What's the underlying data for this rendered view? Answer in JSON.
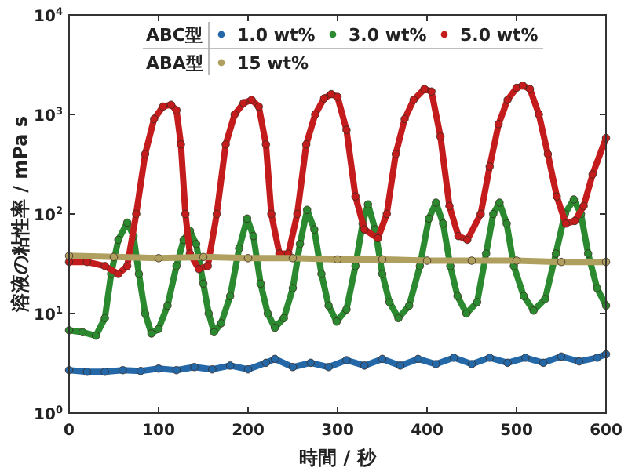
{
  "chart_data": {
    "type": "line",
    "xlabel": "時間 / 秒",
    "ylabel": "溶液の粘性率 / mPa s",
    "log": "y",
    "marker": "circle",
    "legend": "top",
    "annotations": [
      "ABC型",
      "ABA型"
    ],
    "xlim": [
      0,
      600
    ],
    "xticks": [
      0,
      100,
      200,
      300,
      400,
      500,
      600
    ],
    "ylim": [
      1,
      10000
    ],
    "yticks": [
      {
        "value": 1,
        "label": "10$^{0}$"
      },
      {
        "value": 10,
        "label": "10$^{1}$"
      },
      {
        "value": 100,
        "label": "10$^{2}$"
      },
      {
        "value": 1000,
        "label": "10$^{3}$"
      },
      {
        "value": 10000,
        "label": "10$^{4}$"
      }
    ],
    "series": [
      {
        "name": "1.0 wt%",
        "color": "#2468a8",
        "x": [
          0,
          20,
          40,
          60,
          80,
          100,
          120,
          140,
          160,
          180,
          200,
          220,
          230,
          250,
          270,
          290,
          310,
          330,
          350,
          370,
          390,
          410,
          430,
          450,
          470,
          490,
          510,
          530,
          550,
          570,
          590,
          600
        ],
        "values": [
          2.7,
          2.6,
          2.6,
          2.7,
          2.65,
          2.8,
          2.7,
          2.9,
          2.75,
          3.0,
          2.75,
          3.2,
          3.5,
          2.9,
          3.2,
          2.9,
          3.4,
          3.0,
          3.5,
          3.0,
          3.5,
          3.1,
          3.6,
          3.1,
          3.6,
          3.2,
          3.6,
          3.2,
          3.7,
          3.3,
          3.6,
          3.9
        ]
      },
      {
        "name": "3.0 wt%",
        "color": "#2b8a2f",
        "x": [
          0,
          15,
          30,
          40,
          47,
          55,
          65,
          72,
          78,
          85,
          92,
          100,
          110,
          120,
          128,
          135,
          142,
          150,
          156,
          162,
          170,
          180,
          190,
          199,
          206,
          214,
          222,
          230,
          240,
          250,
          258,
          266,
          274,
          282,
          290,
          299,
          310,
          320,
          328,
          334,
          342,
          350,
          358,
          368,
          380,
          392,
          402,
          410,
          418,
          426,
          434,
          444,
          456,
          466,
          474,
          481,
          489,
          497,
          508,
          519,
          532,
          544,
          554,
          564,
          572,
          580,
          590,
          600
        ],
        "values": [
          6.8,
          6.5,
          6,
          9,
          25,
          55,
          82,
          60,
          25,
          10,
          6.3,
          7,
          12,
          30,
          55,
          68,
          50,
          20,
          10,
          6.5,
          8,
          15,
          45,
          90,
          60,
          20,
          10,
          7.2,
          9,
          18,
          50,
          110,
          70,
          25,
          12,
          8.3,
          11,
          30,
          80,
          125,
          70,
          25,
          13,
          9,
          12,
          30,
          90,
          130,
          80,
          30,
          15,
          10,
          13,
          40,
          100,
          130,
          80,
          30,
          15,
          10.7,
          14,
          40,
          100,
          140,
          100,
          40,
          18,
          12
        ]
      },
      {
        "name": "5.0 wt%",
        "color": "#c41c1c",
        "x": [
          0,
          20,
          40,
          55,
          65,
          75,
          85,
          95,
          105,
          114,
          120,
          125,
          130,
          135,
          145,
          155,
          165,
          175,
          185,
          195,
          204,
          212,
          220,
          226,
          235,
          245,
          255,
          265,
          275,
          285,
          293,
          300,
          310,
          320,
          330,
          345,
          355,
          365,
          375,
          385,
          397,
          405,
          415,
          425,
          435,
          445,
          460,
          470,
          480,
          490,
          500,
          507,
          515,
          525,
          535,
          545,
          555,
          565,
          575,
          585,
          600
        ],
        "values": [
          33,
          33,
          30,
          25,
          30,
          100,
          400,
          900,
          1200,
          1250,
          1100,
          500,
          100,
          40,
          28,
          30,
          100,
          500,
          1000,
          1300,
          1400,
          1200,
          500,
          100,
          40,
          40,
          100,
          500,
          1000,
          1450,
          1600,
          1500,
          700,
          150,
          70,
          57,
          100,
          400,
          900,
          1400,
          1800,
          1700,
          600,
          120,
          60,
          55,
          100,
          300,
          800,
          1400,
          1850,
          1950,
          1800,
          1000,
          400,
          150,
          80,
          85,
          120,
          250,
          580
        ]
      },
      {
        "name": "15 wt%",
        "color": "#b0a060",
        "x": [
          0,
          50,
          100,
          150,
          200,
          250,
          300,
          350,
          400,
          450,
          500,
          550,
          600
        ],
        "values": [
          38,
          37,
          36,
          37,
          36,
          36,
          35,
          35,
          34,
          34,
          34,
          33,
          33
        ]
      }
    ]
  }
}
